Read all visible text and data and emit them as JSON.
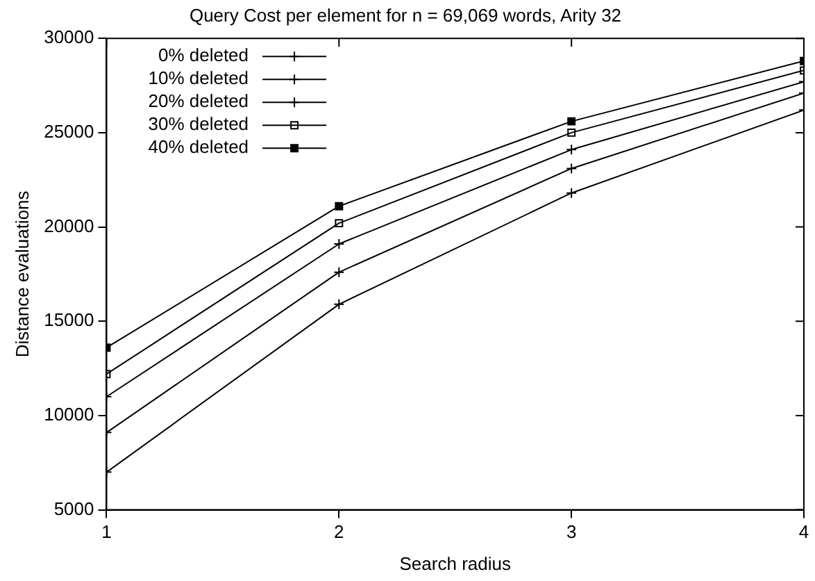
{
  "chart_data": {
    "type": "line",
    "title": "Query Cost per element for n = 69,069 words, Arity 32",
    "xlabel": "Search radius",
    "ylabel": "Distance evaluations",
    "x": [
      1,
      2,
      3,
      4
    ],
    "xlim": [
      1,
      4
    ],
    "xticks": [
      1,
      2,
      3,
      4
    ],
    "ylim": [
      5000,
      30000
    ],
    "yticks": [
      5000,
      10000,
      15000,
      20000,
      25000,
      30000
    ],
    "grid": false,
    "legend": "top left",
    "line_style": "solid",
    "series": [
      {
        "name": "0% deleted",
        "color": "#000000",
        "marker": "cross",
        "values": [
          7000,
          15900,
          21800,
          26200
        ]
      },
      {
        "name": "10% deleted",
        "color": "#000000",
        "marker": "cross",
        "values": [
          9100,
          17600,
          23100,
          27100
        ]
      },
      {
        "name": "20% deleted",
        "color": "#000000",
        "marker": "cross",
        "values": [
          11000,
          19100,
          24100,
          27700
        ]
      },
      {
        "name": "30% deleted",
        "color": "#000000",
        "marker": "square",
        "values": [
          12200,
          20200,
          25000,
          28300
        ]
      },
      {
        "name": "40% deleted",
        "color": "#000000",
        "marker": "square",
        "values": [
          13600,
          21100,
          25600,
          28800
        ]
      }
    ]
  }
}
